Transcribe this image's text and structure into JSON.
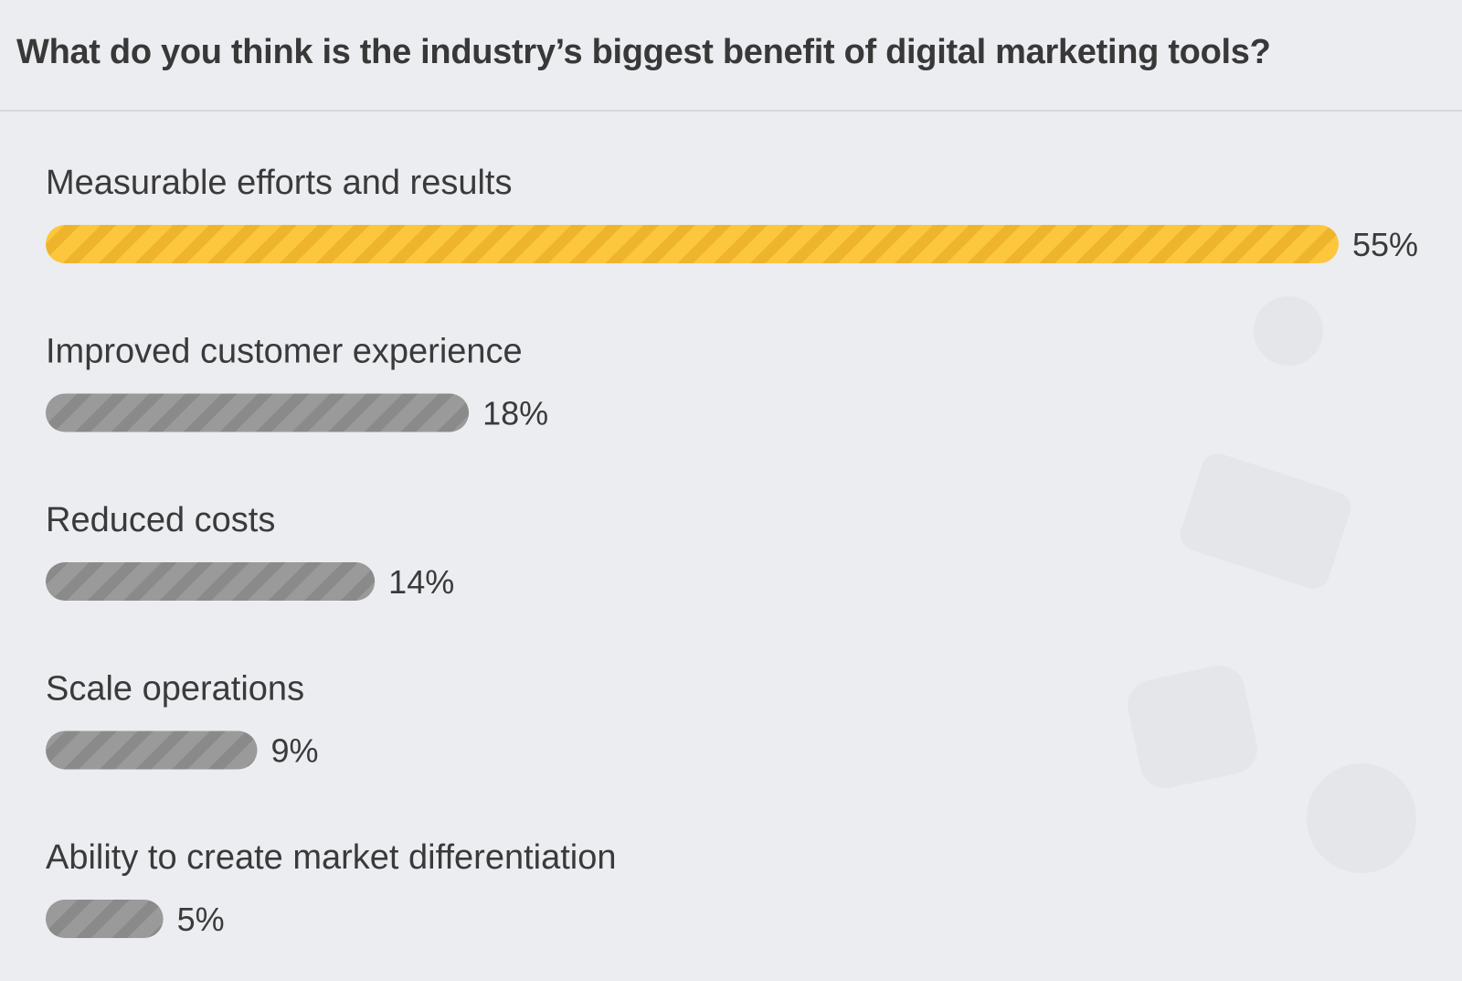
{
  "chart_data": {
    "type": "bar",
    "orientation": "horizontal",
    "title": "What do you think is the industry’s biggest benefit of digital marketing tools?",
    "categories": [
      "Measurable efforts and results",
      "Improved customer experience",
      "Reduced costs",
      "Scale operations",
      "Ability to create market differentiation"
    ],
    "values": [
      55,
      18,
      14,
      9,
      5
    ],
    "value_labels": [
      "55%",
      "18%",
      "14%",
      "9%",
      "5%"
    ],
    "highlight_index": 0,
    "xlim": [
      0,
      55
    ],
    "unit": "%",
    "grid": false,
    "legend": "none",
    "colors": {
      "highlight": "#fcc73c",
      "highlight_stripe": "#eeb42c",
      "default": "#9a9a9a",
      "default_stripe": "#8a8a8a"
    }
  }
}
